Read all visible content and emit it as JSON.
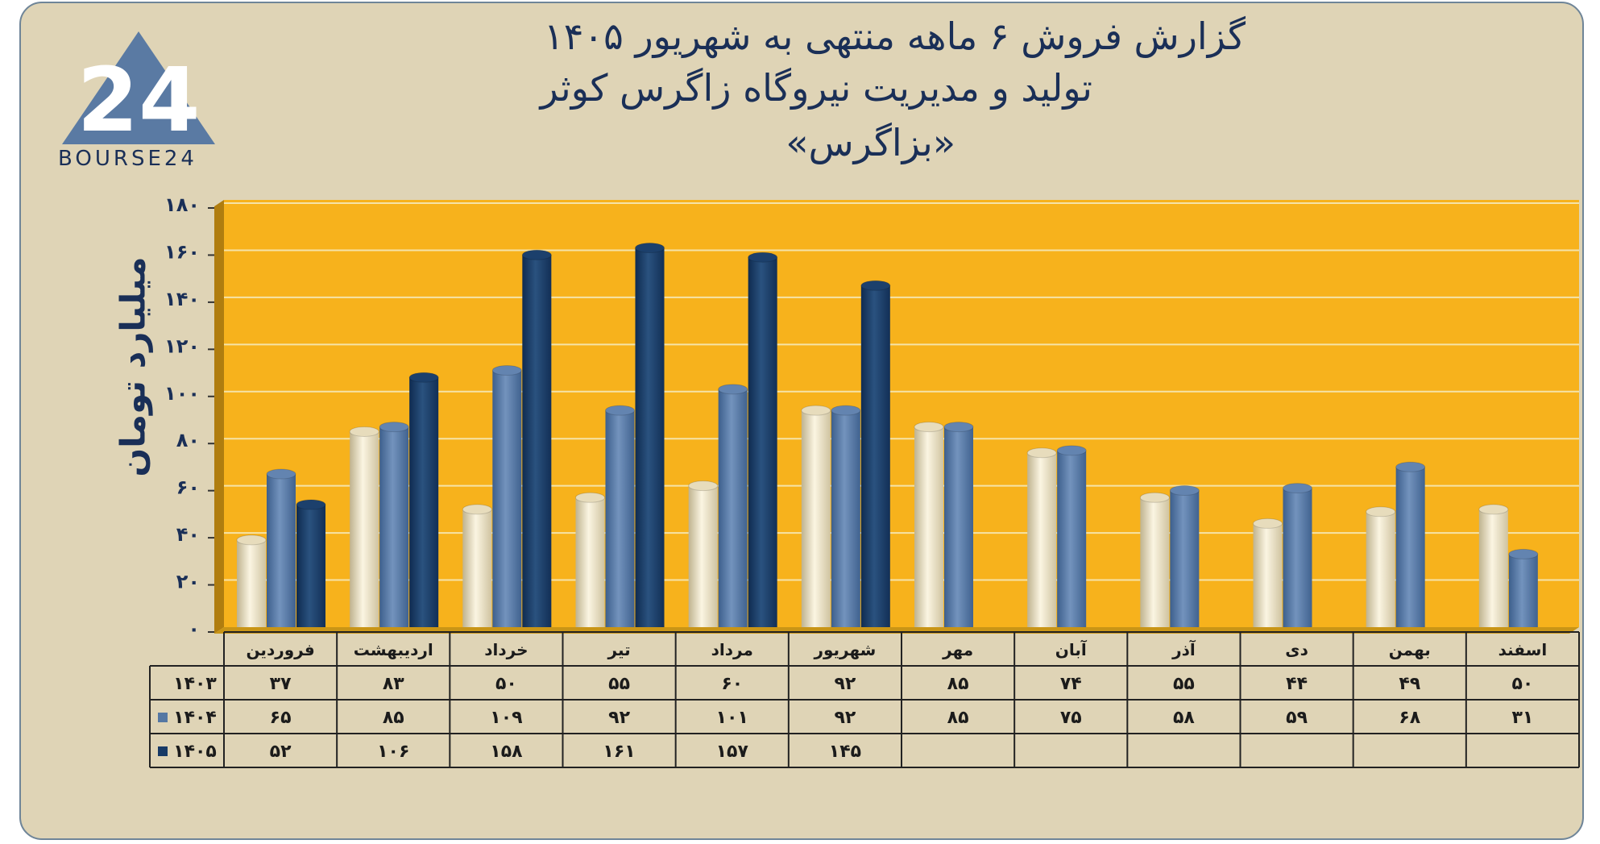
{
  "header": {
    "title_line1": "گزارش  فروش ۶ ماهه منتهی به شهریور ۱۴۰۵",
    "title_line2": "تولید و مدیریت نیروگاه زاگرس کوثر",
    "title_line3": "«بزاگرس»"
  },
  "logo": {
    "text": "BOURSE24",
    "mark": "24"
  },
  "colors": {
    "plot_bg": "#f7b21c",
    "frame_bg": "#dfd4b6",
    "s1403": "#efe6c8",
    "s1404": "#5577a3",
    "s1405": "#173a66",
    "text": "#1a2f57"
  },
  "chart_data": {
    "type": "bar",
    "ylabel": "میلیارد تومان",
    "ylim": [
      0,
      180
    ],
    "yticks": [
      "۰",
      "۲۰",
      "۴۰",
      "۶۰",
      "۸۰",
      "۱۰۰",
      "۱۲۰",
      "۱۴۰",
      "۱۶۰",
      "۱۸۰"
    ],
    "categories": [
      "فروردین",
      "اردیبهشت",
      "خرداد",
      "تیر",
      "مرداد",
      "شهریور",
      "مهر",
      "آبان",
      "آذر",
      "دی",
      "بهمن",
      "اسفند"
    ],
    "series": [
      {
        "name": "۱۴۰۳",
        "values": [
          37,
          83,
          50,
          55,
          60,
          92,
          85,
          74,
          55,
          44,
          49,
          50
        ],
        "labels": [
          "۳۷",
          "۸۳",
          "۵۰",
          "۵۵",
          "۶۰",
          "۹۲",
          "۸۵",
          "۷۴",
          "۵۵",
          "۴۴",
          "۴۹",
          "۵۰"
        ]
      },
      {
        "name": "۱۴۰۴",
        "values": [
          65,
          85,
          109,
          92,
          101,
          92,
          85,
          75,
          58,
          59,
          68,
          31
        ],
        "labels": [
          "۶۵",
          "۸۵",
          "۱۰۹",
          "۹۲",
          "۱۰۱",
          "۹۲",
          "۸۵",
          "۷۵",
          "۵۸",
          "۵۹",
          "۶۸",
          "۳۱"
        ]
      },
      {
        "name": "۱۴۰۵",
        "values": [
          52,
          106,
          158,
          161,
          157,
          145,
          null,
          null,
          null,
          null,
          null,
          null
        ],
        "labels": [
          "۵۲",
          "۱۰۶",
          "۱۵۸",
          "۱۶۱",
          "۱۵۷",
          "۱۴۵",
          "",
          "",
          "",
          "",
          "",
          ""
        ]
      }
    ],
    "grid": true,
    "legend": "table-left"
  }
}
